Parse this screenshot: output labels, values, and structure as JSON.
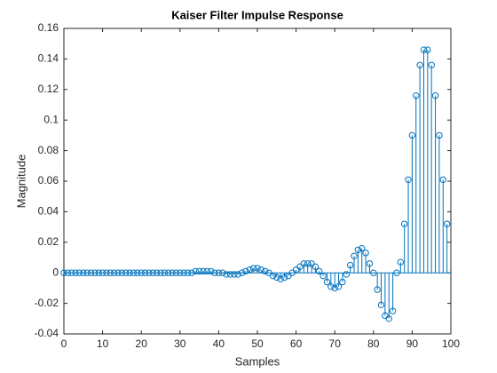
{
  "chart_data": {
    "type": "stem",
    "title": "Kaiser Filter Impulse Response",
    "xlabel": "Samples",
    "ylabel": "Magnitude",
    "color": "#0072bd",
    "x": [
      0,
      1,
      2,
      3,
      4,
      5,
      6,
      7,
      8,
      9,
      10,
      11,
      12,
      13,
      14,
      15,
      16,
      17,
      18,
      19,
      20,
      21,
      22,
      23,
      24,
      25,
      26,
      27,
      28,
      29,
      30,
      31,
      32,
      33,
      34,
      35,
      36,
      37,
      38,
      39,
      40,
      41,
      42,
      43,
      44,
      45,
      46,
      47,
      48,
      49,
      50,
      51,
      52,
      53,
      54,
      55,
      56,
      57,
      58,
      59,
      60,
      61,
      62,
      63,
      64,
      65,
      66,
      67,
      68,
      69,
      70,
      71,
      72,
      73,
      74,
      75,
      76,
      77,
      78,
      79,
      80,
      81,
      82,
      83,
      84,
      85,
      86,
      87,
      88,
      89,
      90,
      91,
      92,
      93,
      94,
      95,
      96,
      97,
      98,
      99
    ],
    "values": [
      0,
      0,
      0,
      0,
      0,
      0,
      0,
      0,
      0,
      0,
      0,
      0,
      0,
      0,
      0,
      0,
      0,
      0,
      0,
      0,
      0,
      0,
      0,
      0,
      0,
      0,
      0,
      0,
      0,
      0,
      0,
      0,
      0,
      0,
      0.001,
      0.001,
      0.001,
      0.001,
      0.001,
      0,
      0,
      0,
      -0.001,
      -0.001,
      -0.001,
      -0.001,
      0,
      0.001,
      0.002,
      0.003,
      0.003,
      0.002,
      0.001,
      0,
      -0.002,
      -0.003,
      -0.004,
      -0.003,
      -0.002,
      0,
      0.002,
      0.004,
      0.006,
      0.006,
      0.006,
      0.004,
      0.001,
      -0.002,
      -0.006,
      -0.009,
      -0.01,
      -0.009,
      -0.006,
      -0.001,
      0.005,
      0.011,
      0.015,
      0.016,
      0.013,
      0.006,
      0,
      -0.011,
      -0.021,
      -0.028,
      -0.03,
      -0.025,
      0,
      0.007,
      0.032,
      0.061,
      0.09,
      0.116,
      0.136,
      0.146,
      0.146,
      0.136,
      0.116,
      0.09,
      0.061,
      0.032
    ],
    "xlim": [
      0,
      100
    ],
    "xticks": [
      0,
      10,
      20,
      30,
      40,
      50,
      60,
      70,
      80,
      90,
      100
    ],
    "ylim": [
      -0.04,
      0.16
    ],
    "yticks": [
      -0.04,
      -0.02,
      0,
      0.02,
      0.04,
      0.06,
      0.08,
      0.1,
      0.12,
      0.14,
      0.16
    ]
  }
}
